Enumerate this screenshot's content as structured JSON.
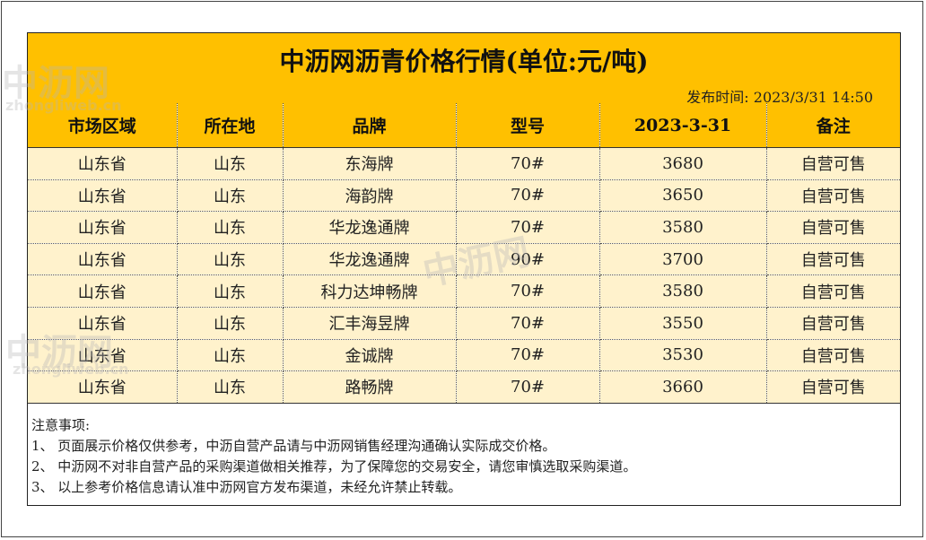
{
  "title": "中沥网沥青价格行情(单位:元/吨)",
  "publish_time": "发布时间: 2023/3/31 14:50",
  "table": {
    "headers": [
      "市场区域",
      "所在地",
      "品牌",
      "型号",
      "2023-3-31",
      "备注"
    ],
    "rows": [
      [
        "山东省",
        "山东",
        "东海牌",
        "70#",
        "3680",
        "自营可售"
      ],
      [
        "山东省",
        "山东",
        "海韵牌",
        "70#",
        "3650",
        "自营可售"
      ],
      [
        "山东省",
        "山东",
        "华龙逸通牌",
        "70#",
        "3580",
        "自营可售"
      ],
      [
        "山东省",
        "山东",
        "华龙逸通牌",
        "90#",
        "3700",
        "自营可售"
      ],
      [
        "山东省",
        "山东",
        "科力达坤畅牌",
        "70#",
        "3580",
        "自营可售"
      ],
      [
        "山东省",
        "山东",
        "汇丰海昱牌",
        "70#",
        "3550",
        "自营可售"
      ],
      [
        "山东省",
        "山东",
        "金诚牌",
        "70#",
        "3530",
        "自营可售"
      ],
      [
        "山东省",
        "山东",
        "路畅牌",
        "70#",
        "3660",
        "自营可售"
      ]
    ]
  },
  "notes": {
    "heading": "注意事项:",
    "items": [
      "1、 页面展示价格仅供参考，中沥自营产品请与中沥网销售经理沟通确认实际成交价格。",
      "2、 中沥网不对非自营产品的采购渠道做相关推荐，为了保障您的交易安全，请您审慎选取采购渠道。",
      "3、 以上参考价格信息请认准中沥网官方发布渠道，未经允许禁止转载。"
    ]
  },
  "watermark": {
    "text_cn": "中沥网",
    "text_en": "zhongliweb.cn"
  },
  "colors": {
    "header_fill": "#ffc000",
    "row_fill": "#fff2cc"
  }
}
